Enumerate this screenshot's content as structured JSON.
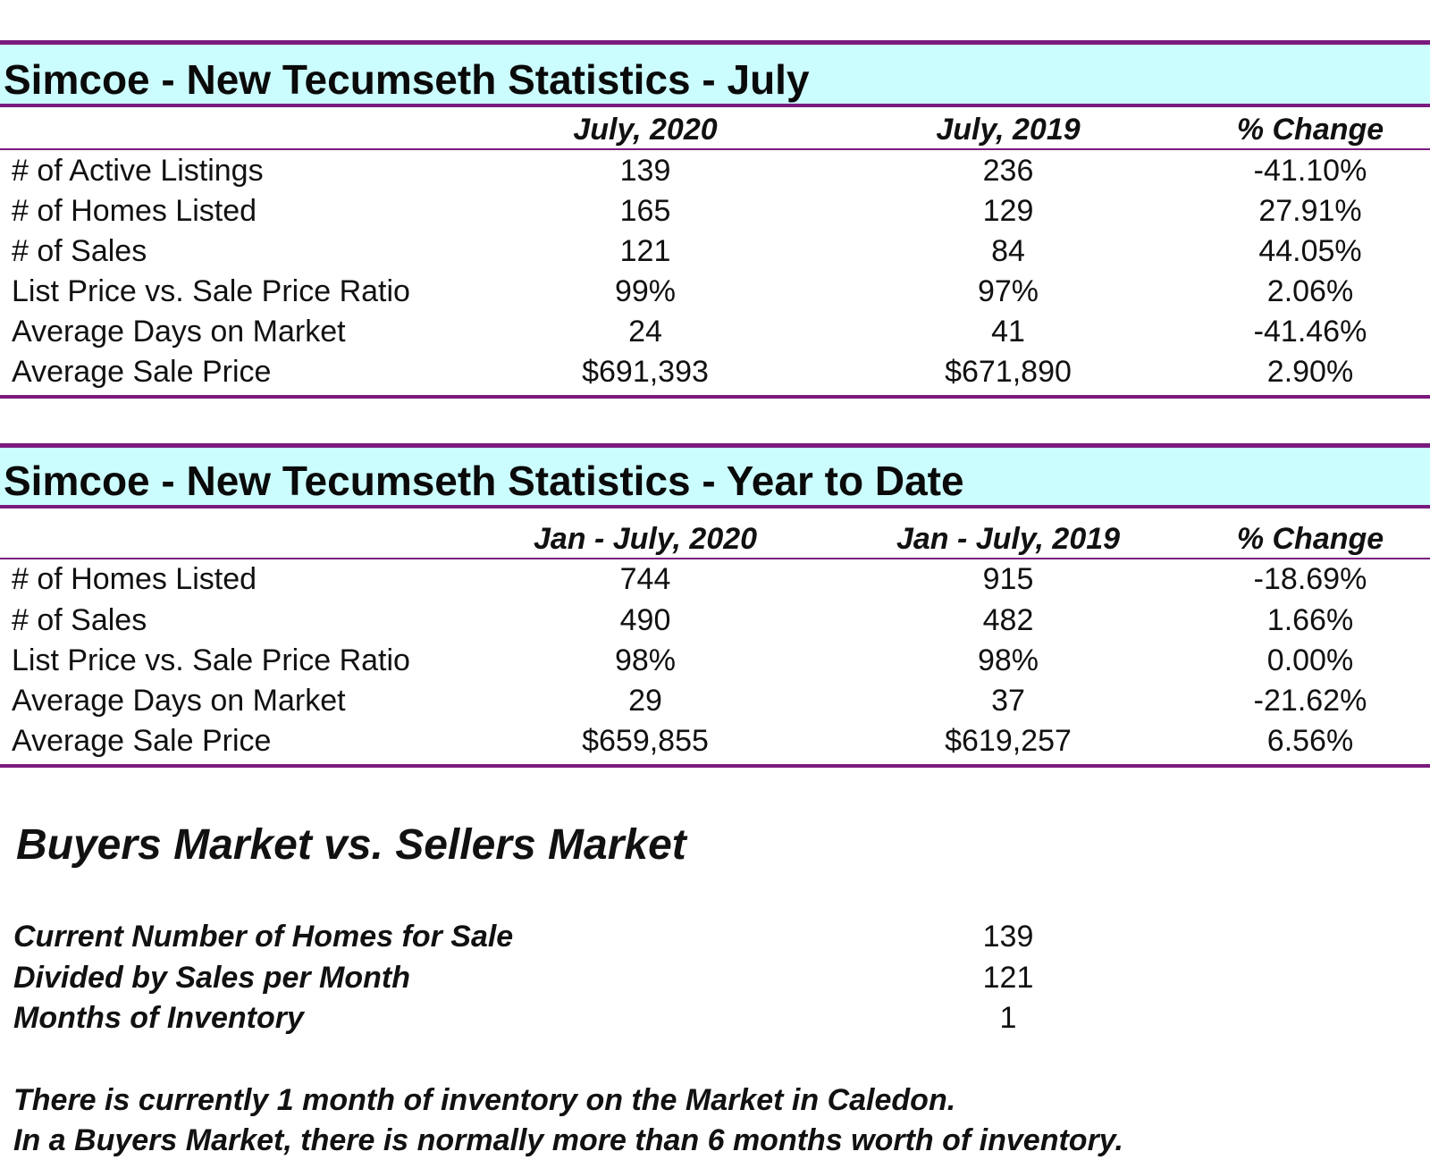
{
  "monthly": {
    "title": "Simcoe - New Tecumseth Statistics - July",
    "headers": [
      "July, 2020",
      "July, 2019",
      "% Change"
    ],
    "rows": [
      {
        "label": "# of Active Listings",
        "v2020": "139",
        "v2019": "236",
        "change": "-41.10%"
      },
      {
        "label": "# of Homes Listed",
        "v2020": "165",
        "v2019": "129",
        "change": "27.91%"
      },
      {
        "label": "# of Sales",
        "v2020": "121",
        "v2019": "84",
        "change": "44.05%"
      },
      {
        "label": "List Price vs. Sale Price Ratio",
        "v2020": "99%",
        "v2019": "97%",
        "change": "2.06%"
      },
      {
        "label": "Average Days on Market",
        "v2020": "24",
        "v2019": "41",
        "change": "-41.46%"
      },
      {
        "label": "Average Sale Price",
        "v2020": "$691,393",
        "v2019": "$671,890",
        "change": "2.90%"
      }
    ]
  },
  "ytd": {
    "title": "Simcoe - New Tecumseth Statistics - Year to Date",
    "headers": [
      "Jan - July, 2020",
      "Jan - July, 2019",
      "% Change"
    ],
    "rows": [
      {
        "label": "# of Homes Listed",
        "v2020": "744",
        "v2019": "915",
        "change": "-18.69%"
      },
      {
        "label": "# of Sales",
        "v2020": "490",
        "v2019": "482",
        "change": "1.66%"
      },
      {
        "label": "List Price vs. Sale Price Ratio",
        "v2020": "98%",
        "v2019": "98%",
        "change": "0.00%"
      },
      {
        "label": "Average Days on Market",
        "v2020": "29",
        "v2019": "37",
        "change": "-21.62%"
      },
      {
        "label": "Average Sale Price",
        "v2020": "$659,855",
        "v2019": "$619,257",
        "change": "6.56%"
      }
    ]
  },
  "market": {
    "title": "Buyers Market vs. Sellers Market",
    "rows": [
      {
        "label": "Current Number of Homes for Sale",
        "value": "139"
      },
      {
        "label": "Divided by Sales per Month",
        "value": "121"
      },
      {
        "label": "Months of Inventory",
        "value": "1"
      }
    ],
    "notes": [
      "There is currently 1 month of inventory on the Market in Caledon.",
      "In a Buyers Market, there is normally more than 6 months worth of inventory."
    ]
  },
  "colors": {
    "rule": "#7a1a7e",
    "title_bg": "#ccfdfe"
  }
}
